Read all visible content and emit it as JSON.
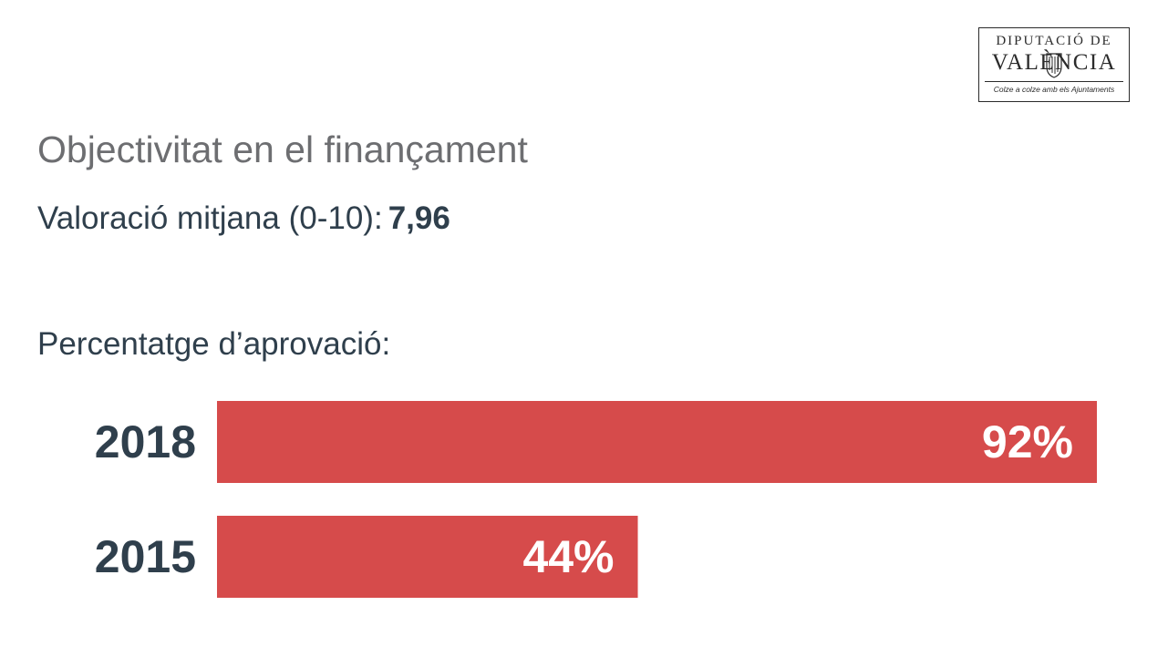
{
  "logo": {
    "line1": "DIPUTACIÓ DE",
    "line2": "VALÈNCIA",
    "tagline": "Colze a colze amb els Ajuntaments"
  },
  "title": "Objectivitat en el finançament",
  "rating": {
    "label": "Valoració mitjana (0-10):",
    "value": "7,96"
  },
  "approval_label": "Percentatge d’aprovació:",
  "colors": {
    "bar": "#d64b4b",
    "category_text": "#2f3f4c",
    "bar_label": "#ffffff"
  },
  "chart_data": {
    "type": "bar",
    "orientation": "horizontal",
    "categories": [
      "2018",
      "2015"
    ],
    "values": [
      92,
      44
    ],
    "value_labels": [
      "92%",
      "44%"
    ],
    "xlim": [
      0,
      92
    ],
    "grid": false
  }
}
